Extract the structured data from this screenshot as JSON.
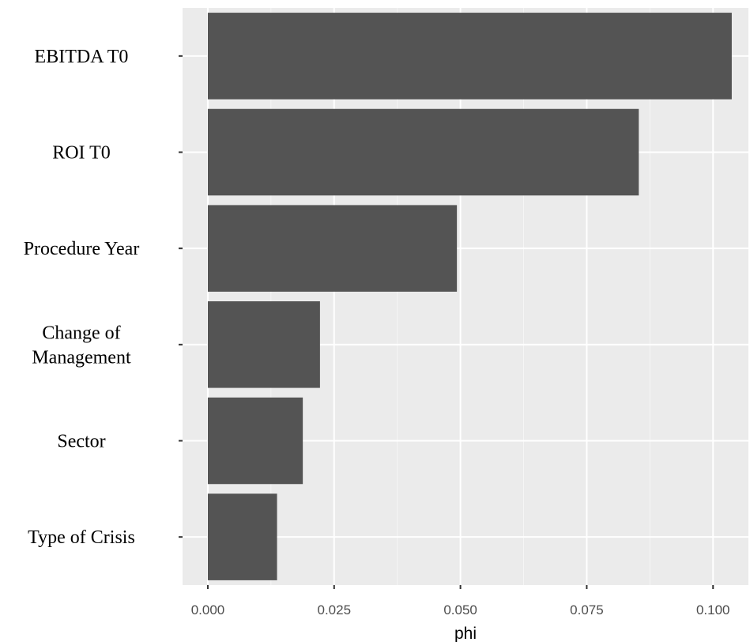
{
  "chart_data": {
    "type": "bar",
    "orientation": "horizontal",
    "categories": [
      [
        "EBITDA T0"
      ],
      [
        "ROI T0"
      ],
      [
        "Procedure Year"
      ],
      [
        "Change of",
        "Management"
      ],
      [
        "Sector"
      ],
      [
        "Type of Crisis"
      ]
    ],
    "values": [
      0.1037,
      0.0853,
      0.0493,
      0.0222,
      0.0188,
      0.0137
    ],
    "xlabel": "phi",
    "ylabel": "",
    "title": "",
    "xlim": [
      -0.005,
      0.107
    ],
    "xticks": [
      0.0,
      0.025,
      0.05,
      0.075,
      0.1
    ],
    "xtick_labels": [
      "0.000",
      "0.025",
      "0.050",
      "0.075",
      "0.100"
    ],
    "grid": true,
    "colors": {
      "bar": "#545454",
      "panel": "#ebebeb",
      "grid_major": "#ffffff",
      "grid_minor": "#f5f5f5"
    }
  }
}
